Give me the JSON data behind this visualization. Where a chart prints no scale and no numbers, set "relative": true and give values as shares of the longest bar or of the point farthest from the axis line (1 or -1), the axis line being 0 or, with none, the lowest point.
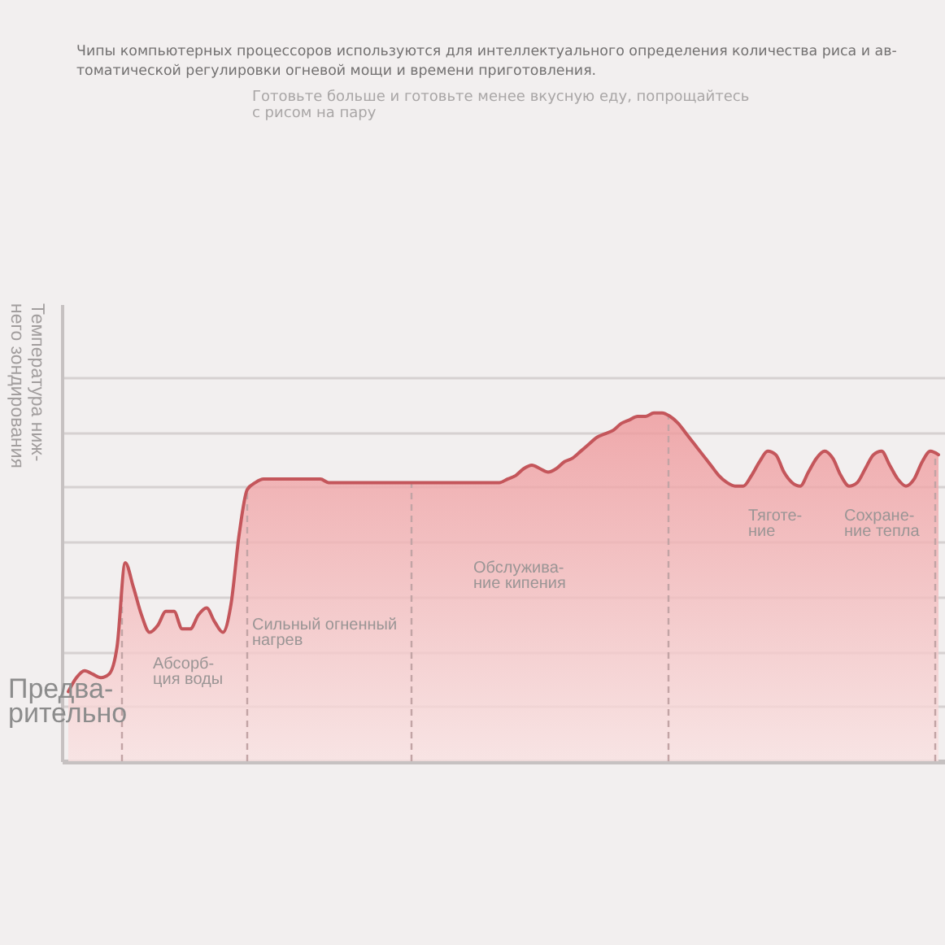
{
  "chart_data": {
    "type": "area",
    "title": "Чипы компьютерных процессоров используются для интеллектуального определения количества риса и ав-\nтоматической регулировки огневой мощи и времени приготовления.",
    "subtitle": "Готовьте больше и готовьте менее вкусную еду, попрощайтесь\nс рисом на пару",
    "ylabel": "Температура ниж-\nнего зондирования",
    "annotations": [
      "Предва-\nрительно",
      "Абсорб-\nция воды",
      "Сильный огненный\nнагрев",
      "Обслужива-\nние кипения",
      "Тяготе-\nние",
      "Сохране-\nние тепла"
    ],
    "categories": [
      null,
      null,
      null,
      null,
      null,
      null,
      null,
      null,
      null,
      null,
      null,
      null,
      null,
      null,
      null,
      null,
      null,
      null,
      null,
      null,
      null,
      null,
      null,
      null,
      null,
      null,
      null,
      null,
      null,
      null,
      null,
      null,
      null,
      null,
      null,
      null,
      null,
      null,
      null,
      null,
      null,
      null,
      null,
      null,
      null,
      null,
      null,
      null,
      null,
      null,
      null,
      null,
      null,
      null,
      null,
      null,
      null,
      null,
      null,
      null,
      null,
      null,
      null,
      null,
      null,
      null,
      null,
      null,
      null,
      null,
      null,
      null,
      null,
      null,
      null,
      null,
      null,
      null,
      null,
      null,
      null,
      null,
      null,
      null,
      null,
      null,
      null,
      null,
      null,
      null,
      null,
      null,
      null,
      null,
      null,
      null,
      null,
      null,
      null,
      null,
      null,
      null,
      null,
      null,
      null,
      null,
      null,
      null
    ],
    "relative": true,
    "series": [
      {
        "color": "#c4565b",
        "values": [
          0.2,
          0.24,
          0.26,
          0.25,
          0.24,
          0.25,
          0.33,
          0.57,
          0.5,
          0.42,
          0.37,
          0.39,
          0.43,
          0.43,
          0.38,
          0.38,
          0.42,
          0.44,
          0.4,
          0.37,
          0.45,
          0.65,
          0.78,
          0.8,
          0.81,
          0.81,
          0.81,
          0.81,
          0.81,
          0.81,
          0.81,
          0.81,
          0.8,
          0.8,
          0.8,
          0.8,
          0.8,
          0.8,
          0.8,
          0.8,
          0.8,
          0.8,
          0.8,
          0.8,
          0.8,
          0.8,
          0.8,
          0.8,
          0.8,
          0.8,
          0.8,
          0.8,
          0.8,
          0.8,
          0.81,
          0.82,
          0.84,
          0.85,
          0.84,
          0.83,
          0.84,
          0.86,
          0.87,
          0.89,
          0.91,
          0.93,
          0.94,
          0.95,
          0.97,
          0.98,
          0.99,
          0.99,
          1,
          1,
          0.99,
          0.97,
          0.94,
          0.91,
          0.88,
          0.85,
          0.82,
          0.8,
          0.79,
          0.79,
          0.82,
          0.86,
          0.89,
          0.88,
          0.83,
          0.8,
          0.79,
          0.83,
          0.87,
          0.89,
          0.87,
          0.82,
          0.79,
          0.8,
          0.84,
          0.88,
          0.89,
          0.85,
          0.81,
          0.79,
          0.81,
          0.86,
          0.89,
          0.88
        ]
      }
    ],
    "grid": "y"
  }
}
